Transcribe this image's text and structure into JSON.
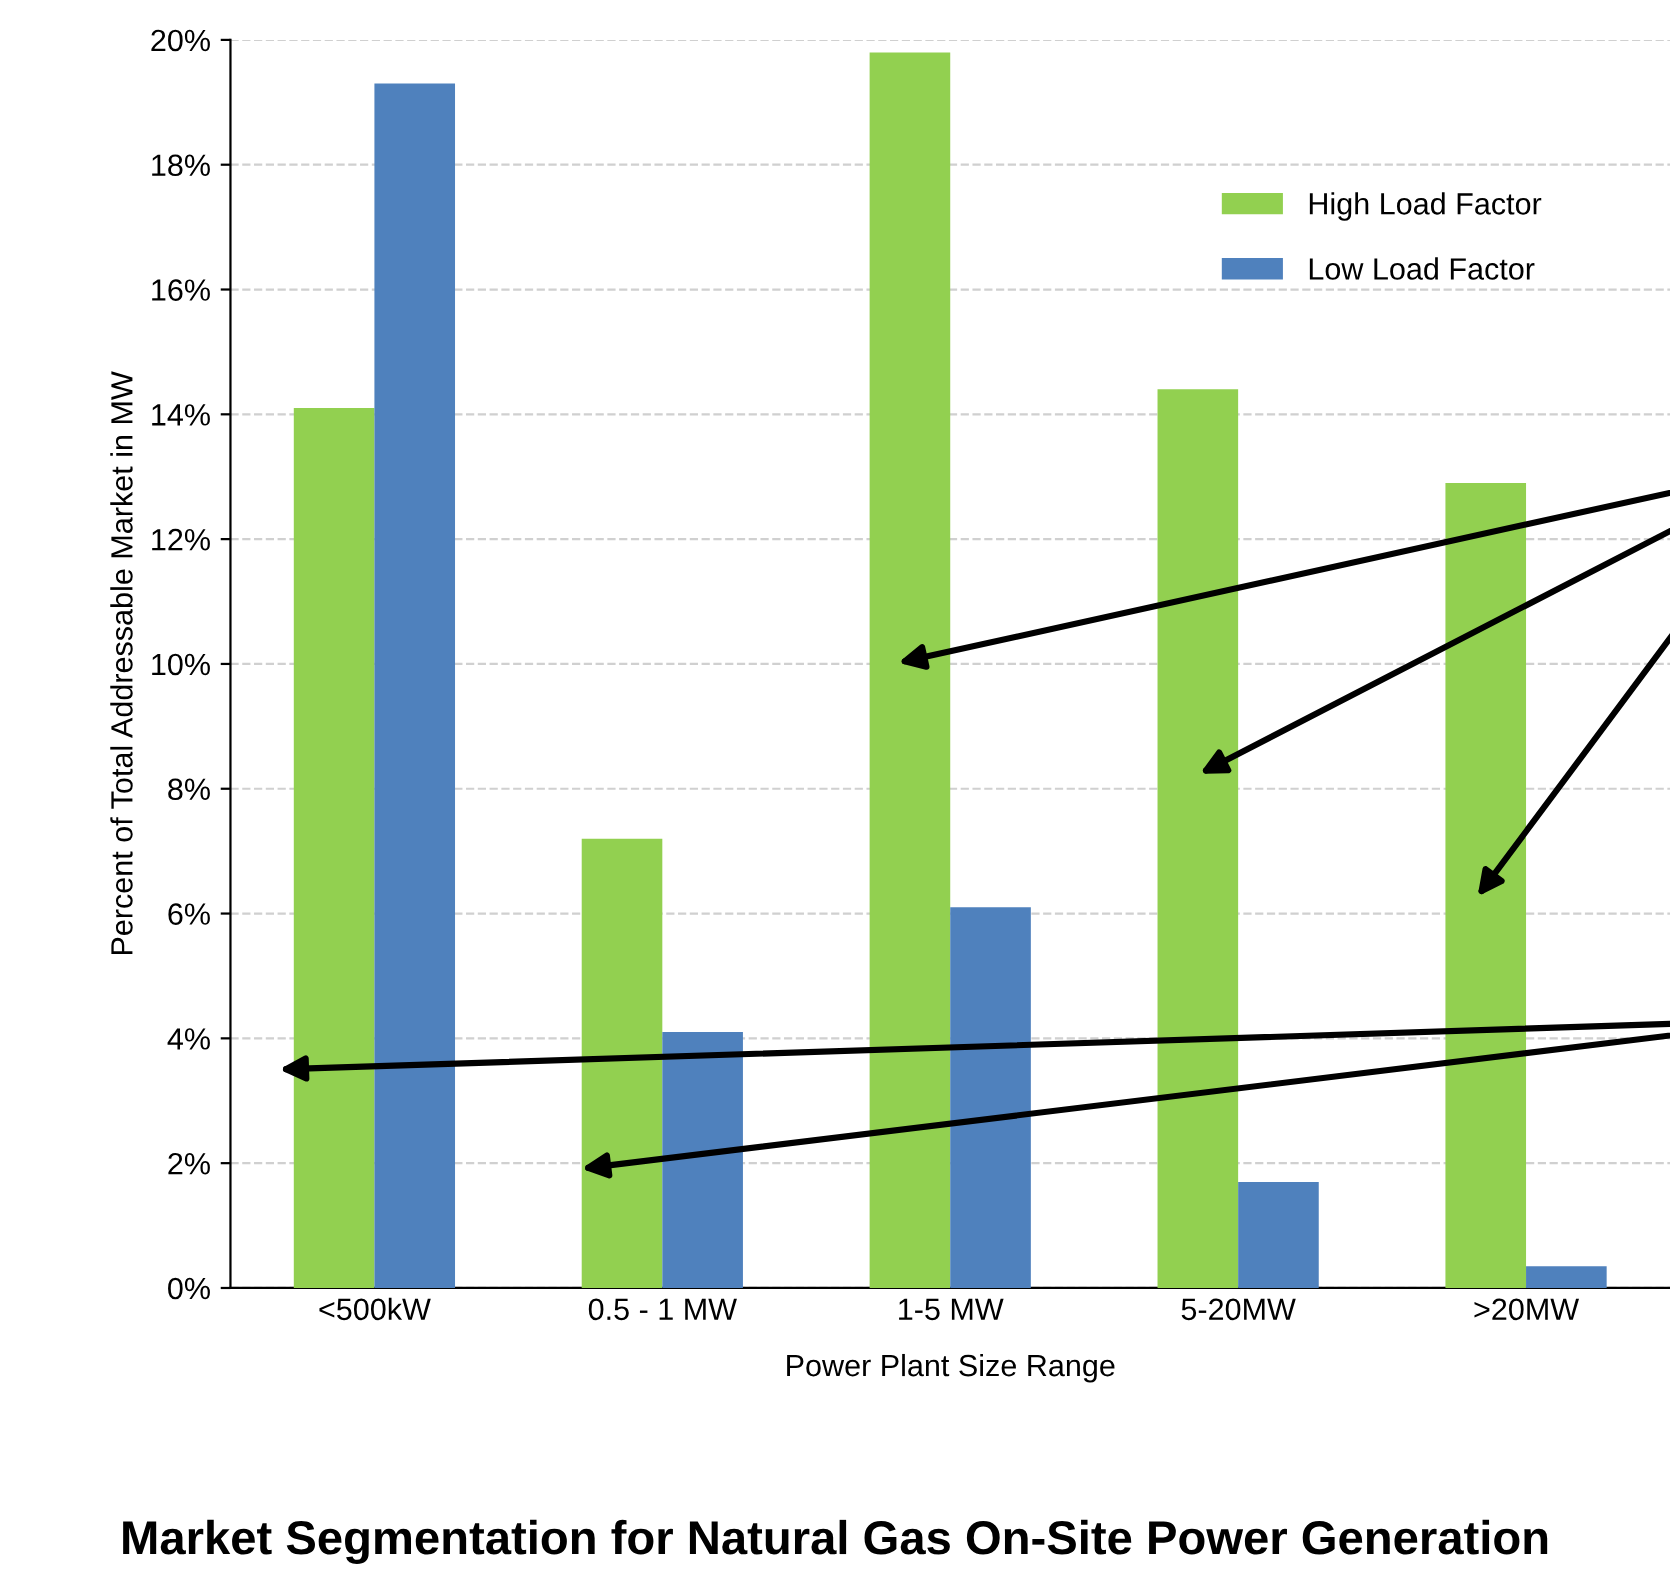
{
  "chart_data": {
    "type": "bar",
    "title": "Market Segmentation for Natural Gas On-Site Power Generation",
    "xlabel": "Power Plant Size Range",
    "ylabel": "Percent of Total Addressable Market in MW",
    "categories": [
      "<500kW",
      "0.5 - 1 MW",
      "1-5 MW",
      "5-20MW",
      ">20MW"
    ],
    "series": [
      {
        "name": "High Load Factor",
        "color": "#92d050",
        "values": [
          14.1,
          7.2,
          19.8,
          14.4,
          12.9
        ]
      },
      {
        "name": "Low Load Factor",
        "color": "#4f81bd",
        "values": [
          19.3,
          4.1,
          6.1,
          1.7,
          0.35
        ]
      }
    ],
    "ylim": [
      0,
      20
    ],
    "yticks": [
      {
        "value": 0,
        "label": "0%"
      },
      {
        "value": 2,
        "label": "2%"
      },
      {
        "value": 4,
        "label": "4%"
      },
      {
        "value": 6,
        "label": "6%"
      },
      {
        "value": 8,
        "label": "8%"
      },
      {
        "value": 10,
        "label": "10%"
      },
      {
        "value": 12,
        "label": "12%"
      },
      {
        "value": 14,
        "label": "14%"
      },
      {
        "value": 16,
        "label": "16%"
      },
      {
        "value": 18,
        "label": "18%"
      },
      {
        "value": 20,
        "label": "20%"
      }
    ],
    "grid": "y",
    "legend": "top right"
  }
}
